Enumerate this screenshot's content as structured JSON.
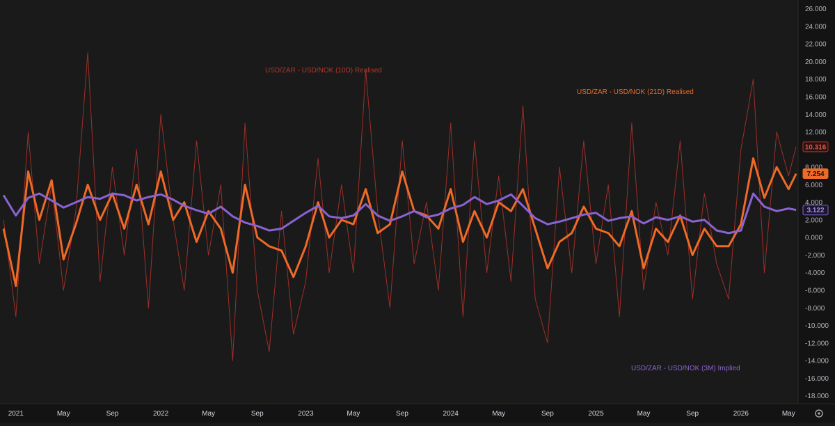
{
  "colors": {
    "background": "#1a1a1a",
    "axis_panel": "#131313",
    "tick_text": "#b2b5be",
    "realised_10d": "#b5342a",
    "realised_21d": "#ee6a27",
    "implied_3m": "#8a63d2"
  },
  "settings_icon": "gear-icon",
  "chart_data": {
    "type": "line",
    "x_ticks": [
      "2021",
      "May",
      "Sep",
      "2022",
      "May",
      "Sep",
      "2023",
      "May",
      "Sep",
      "2024",
      "May",
      "Sep",
      "2025",
      "May",
      "Sep",
      "2026",
      "May"
    ],
    "y_ticks": [
      "26.000",
      "24.000",
      "22.000",
      "20.000",
      "18.000",
      "16.000",
      "14.000",
      "12.000",
      "10.000",
      "8.000",
      "6.000",
      "4.000",
      "2.000",
      "0.000",
      "-2.000",
      "-4.000",
      "-6.000",
      "-8.000",
      "-10.000",
      "-12.000",
      "-14.000",
      "-16.000",
      "-18.000"
    ],
    "ylim": [
      -18.9,
      27
    ],
    "xlim": [
      "2020-11-22",
      "2026-05-25"
    ],
    "grid": false,
    "series": [
      {
        "name": "USD/ZAR - USD/NOK (10D) Realised",
        "color": "#b5342a",
        "last_value": "10.316",
        "x": [
          "2020-12-01",
          "2021-01-01",
          "2021-02-01",
          "2021-03-01",
          "2021-04-01",
          "2021-05-01",
          "2021-06-01",
          "2021-07-01",
          "2021-08-01",
          "2021-09-01",
          "2021-10-01",
          "2021-11-01",
          "2021-12-01",
          "2022-01-01",
          "2022-02-01",
          "2022-03-01",
          "2022-04-01",
          "2022-05-01",
          "2022-06-01",
          "2022-07-01",
          "2022-08-01",
          "2022-09-01",
          "2022-10-01",
          "2022-11-01",
          "2022-12-01",
          "2023-01-01",
          "2023-02-01",
          "2023-03-01",
          "2023-04-01",
          "2023-05-01",
          "2023-06-01",
          "2023-07-01",
          "2023-08-01",
          "2023-09-01",
          "2023-10-01",
          "2023-11-01",
          "2023-12-01",
          "2024-01-01",
          "2024-02-01",
          "2024-03-01",
          "2024-04-01",
          "2024-05-01",
          "2024-06-01",
          "2024-07-01",
          "2024-08-01",
          "2024-09-01",
          "2024-10-01",
          "2024-11-01",
          "2024-12-01",
          "2025-01-01",
          "2025-02-01",
          "2025-03-01",
          "2025-04-01",
          "2025-05-01",
          "2025-06-01",
          "2025-07-01",
          "2025-08-01",
          "2025-09-01",
          "2025-10-01",
          "2025-11-01",
          "2025-12-01",
          "2026-01-01",
          "2026-02-01",
          "2026-03-01",
          "2026-04-01",
          "2026-05-01",
          "2026-05-20"
        ],
        "y": [
          2.0,
          -9.0,
          12.0,
          -3.0,
          6.0,
          -6.0,
          3.0,
          21.0,
          -5.0,
          8.0,
          -2.0,
          10.0,
          -8.0,
          14.0,
          2.0,
          -6.0,
          11.0,
          -2.0,
          6.0,
          -14.0,
          13.0,
          -6.0,
          -13.0,
          3.0,
          -11.0,
          -5.0,
          9.0,
          -4.0,
          6.0,
          -4.0,
          19.0,
          3.0,
          -8.0,
          11.0,
          -3.0,
          4.0,
          -6.0,
          13.0,
          -9.0,
          11.0,
          -4.0,
          7.0,
          -5.0,
          15.0,
          -7.0,
          -12.0,
          8.0,
          -4.0,
          11.0,
          -3.0,
          6.0,
          -9.0,
          13.0,
          -6.0,
          4.0,
          -2.0,
          11.0,
          -7.0,
          5.0,
          -3.0,
          -7.0,
          10.0,
          18.0,
          -4.0,
          12.0,
          7.0,
          10.316
        ]
      },
      {
        "name": "USD/ZAR - USD/NOK (21D) Realised",
        "color": "#ee6a27",
        "last_value": "7.254",
        "x": [
          "2020-12-01",
          "2021-01-01",
          "2021-02-01",
          "2021-03-01",
          "2021-04-01",
          "2021-05-01",
          "2021-06-01",
          "2021-07-01",
          "2021-08-01",
          "2021-09-01",
          "2021-10-01",
          "2021-11-01",
          "2021-12-01",
          "2022-01-01",
          "2022-02-01",
          "2022-03-01",
          "2022-04-01",
          "2022-05-01",
          "2022-06-01",
          "2022-07-01",
          "2022-08-01",
          "2022-09-01",
          "2022-10-01",
          "2022-11-01",
          "2022-12-01",
          "2023-01-01",
          "2023-02-01",
          "2023-03-01",
          "2023-04-01",
          "2023-05-01",
          "2023-06-01",
          "2023-07-01",
          "2023-08-01",
          "2023-09-01",
          "2023-10-01",
          "2023-11-01",
          "2023-12-01",
          "2024-01-01",
          "2024-02-01",
          "2024-03-01",
          "2024-04-01",
          "2024-05-01",
          "2024-06-01",
          "2024-07-01",
          "2024-08-01",
          "2024-09-01",
          "2024-10-01",
          "2024-11-01",
          "2024-12-01",
          "2025-01-01",
          "2025-02-01",
          "2025-03-01",
          "2025-04-01",
          "2025-05-01",
          "2025-06-01",
          "2025-07-01",
          "2025-08-01",
          "2025-09-01",
          "2025-10-01",
          "2025-11-01",
          "2025-12-01",
          "2026-01-01",
          "2026-02-01",
          "2026-03-01",
          "2026-04-01",
          "2026-05-01",
          "2026-05-20"
        ],
        "y": [
          1.0,
          -5.5,
          7.5,
          2.0,
          6.5,
          -2.5,
          1.5,
          6.0,
          2.0,
          5.0,
          1.0,
          6.0,
          1.5,
          7.5,
          2.0,
          4.0,
          -0.5,
          3.0,
          1.0,
          -4.0,
          6.0,
          0.0,
          -1.0,
          -1.5,
          -4.5,
          -1.0,
          4.0,
          0.0,
          2.0,
          1.5,
          5.5,
          0.5,
          1.5,
          7.5,
          3.0,
          2.5,
          1.0,
          5.5,
          -0.5,
          3.0,
          0.0,
          4.0,
          3.0,
          5.5,
          1.0,
          -3.5,
          -0.5,
          0.5,
          3.5,
          1.0,
          0.5,
          -1.0,
          3.0,
          -3.5,
          1.0,
          -0.5,
          2.5,
          -2.0,
          1.0,
          -1.0,
          -1.0,
          1.5,
          9.0,
          4.5,
          8.0,
          5.5,
          7.254
        ]
      },
      {
        "name": "USD/ZAR - USD/NOK (3M) Implied",
        "color": "#8a63d2",
        "last_value": "3.122",
        "x": [
          "2020-12-01",
          "2021-01-01",
          "2021-02-01",
          "2021-03-01",
          "2021-04-01",
          "2021-05-01",
          "2021-06-01",
          "2021-07-01",
          "2021-08-01",
          "2021-09-01",
          "2021-10-01",
          "2021-11-01",
          "2021-12-01",
          "2022-01-01",
          "2022-02-01",
          "2022-03-01",
          "2022-04-01",
          "2022-05-01",
          "2022-06-01",
          "2022-07-01",
          "2022-08-01",
          "2022-09-01",
          "2022-10-01",
          "2022-11-01",
          "2022-12-01",
          "2023-01-01",
          "2023-02-01",
          "2023-03-01",
          "2023-04-01",
          "2023-05-01",
          "2023-06-01",
          "2023-07-01",
          "2023-08-01",
          "2023-09-01",
          "2023-10-01",
          "2023-11-01",
          "2023-12-01",
          "2024-01-01",
          "2024-02-01",
          "2024-03-01",
          "2024-04-01",
          "2024-05-01",
          "2024-06-01",
          "2024-07-01",
          "2024-08-01",
          "2024-09-01",
          "2024-10-01",
          "2024-11-01",
          "2024-12-01",
          "2025-01-01",
          "2025-02-01",
          "2025-03-01",
          "2025-04-01",
          "2025-05-01",
          "2025-06-01",
          "2025-07-01",
          "2025-08-01",
          "2025-09-01",
          "2025-10-01",
          "2025-11-01",
          "2025-12-01",
          "2026-01-01",
          "2026-02-01",
          "2026-03-01",
          "2026-04-01",
          "2026-05-01",
          "2026-05-20"
        ],
        "y": [
          4.8,
          2.5,
          4.5,
          5.0,
          4.2,
          3.4,
          4.0,
          4.6,
          4.4,
          5.0,
          4.8,
          4.2,
          4.6,
          4.9,
          4.3,
          3.6,
          3.1,
          2.7,
          3.5,
          2.4,
          1.7,
          1.3,
          0.8,
          1.0,
          1.9,
          2.8,
          3.6,
          2.4,
          2.2,
          2.5,
          3.8,
          2.5,
          1.9,
          2.4,
          3.0,
          2.3,
          2.6,
          3.3,
          3.7,
          4.6,
          3.8,
          4.2,
          4.9,
          3.6,
          2.2,
          1.5,
          1.8,
          2.2,
          2.6,
          2.8,
          1.9,
          2.2,
          2.4,
          1.6,
          2.3,
          2.0,
          2.4,
          1.8,
          2.0,
          0.8,
          0.5,
          0.8,
          5.0,
          3.5,
          3.0,
          3.3,
          3.122
        ]
      }
    ]
  }
}
